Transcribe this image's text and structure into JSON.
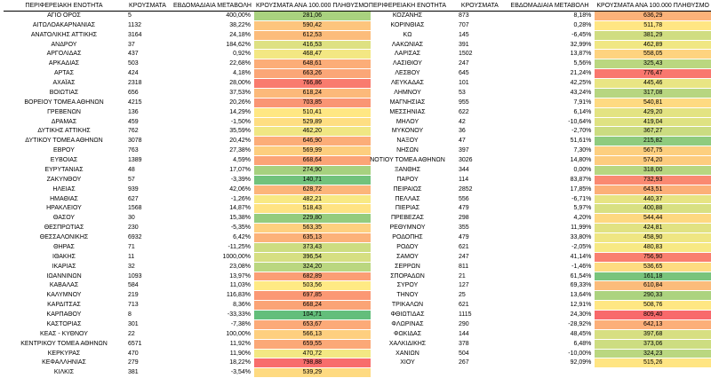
{
  "headers": {
    "region": "ΠΕΡΙΦΕΡΕΙΑΚΗ ΕΝΟΤΗΤΑ",
    "cases": "ΚΡΟΥΣΜΑΤΑ",
    "weekly_change": "ΕΒΔΟΜΑΔΙΑΙΑ ΜΕΤΑΒΟΛΗ",
    "rate": "ΚΡΟΥΣΜΑΤΑ ΑΝΑ 100.000 ΠΛΗΘΥΣΜΟ"
  },
  "color_scale": {
    "low": "#63be7b",
    "mid": "#ffeb84",
    "high": "#f8696b",
    "min": 104.71,
    "mid_value": 500,
    "max": 809.4
  },
  "left_rows": [
    {
      "region": "ΑΓΙΟ ΟΡΟΣ",
      "cases": "5",
      "change": "400,00%",
      "rate": "281,06"
    },
    {
      "region": "ΑΙΤΩΛΟΑΚΑΡΝΑΝΙΑΣ",
      "cases": "1132",
      "change": "38,22%",
      "rate": "590,42"
    },
    {
      "region": "ΑΝΑΤΟΛΙΚΗΣ ΑΤΤΙΚΗΣ",
      "cases": "3164",
      "change": "24,18%",
      "rate": "612,53"
    },
    {
      "region": "ΑΝΔΡΟΥ",
      "cases": "37",
      "change": "184,62%",
      "rate": "416,53"
    },
    {
      "region": "ΑΡΓΟΛΙΔΑΣ",
      "cases": "437",
      "change": "0,92%",
      "rate": "468,47"
    },
    {
      "region": "ΑΡΚΑΔΙΑΣ",
      "cases": "503",
      "change": "22,68%",
      "rate": "648,61"
    },
    {
      "region": "ΑΡΤΑΣ",
      "cases": "424",
      "change": "4,18%",
      "rate": "663,26"
    },
    {
      "region": "ΑΧΑΪΑΣ",
      "cases": "2318",
      "change": "28,00%",
      "rate": "766,86"
    },
    {
      "region": "ΒΟΙΩΤΙΑΣ",
      "cases": "656",
      "change": "37,53%",
      "rate": "618,24"
    },
    {
      "region": "ΒΟΡΕΙΟΥ ΤΟΜΕΑ ΑΘΗΝΩΝ",
      "cases": "4215",
      "change": "20,26%",
      "rate": "703,85"
    },
    {
      "region": "ΓΡΕΒΕΝΩΝ",
      "cases": "136",
      "change": "14,29%",
      "rate": "510,41"
    },
    {
      "region": "ΔΡΑΜΑΣ",
      "cases": "459",
      "change": "-1,50%",
      "rate": "529,89"
    },
    {
      "region": "ΔΥΤΙΚΗΣ ΑΤΤΙΚΗΣ",
      "cases": "762",
      "change": "35,59%",
      "rate": "462,20"
    },
    {
      "region": "ΔΥΤΙΚΟΥ ΤΟΜΕΑ ΑΘΗΝΩΝ",
      "cases": "3078",
      "change": "20,42%",
      "rate": "646,90"
    },
    {
      "region": "ΕΒΡΟΥ",
      "cases": "763",
      "change": "27,38%",
      "rate": "569,99"
    },
    {
      "region": "ΕΥΒΟΙΑΣ",
      "cases": "1389",
      "change": "4,59%",
      "rate": "668,64"
    },
    {
      "region": "ΕΥΡΥΤΑΝΙΑΣ",
      "cases": "48",
      "change": "17,07%",
      "rate": "274,90"
    },
    {
      "region": "ΖΑΚΥΝΘΟΥ",
      "cases": "57",
      "change": "-3,39%",
      "rate": "140,71"
    },
    {
      "region": "ΗΛΕΙΑΣ",
      "cases": "939",
      "change": "42,06%",
      "rate": "628,72"
    },
    {
      "region": "ΗΜΑΘΙΑΣ",
      "cases": "627",
      "change": "-1,26%",
      "rate": "482,21"
    },
    {
      "region": "ΗΡΑΚΛΕΙΟΥ",
      "cases": "1568",
      "change": "14,87%",
      "rate": "518,43"
    },
    {
      "region": "ΘΑΣΟΥ",
      "cases": "30",
      "change": "15,38%",
      "rate": "229,80"
    },
    {
      "region": "ΘΕΣΠΡΩΤΙΑΣ",
      "cases": "230",
      "change": "-5,35%",
      "rate": "563,35"
    },
    {
      "region": "ΘΕΣΣΑΛΟΝΙΚΗΣ",
      "cases": "6932",
      "change": "6,42%",
      "rate": "635,13"
    },
    {
      "region": "ΘΗΡΑΣ",
      "cases": "71",
      "change": "-11,25%",
      "rate": "373,43"
    },
    {
      "region": "ΙΘΑΚΗΣ",
      "cases": "11",
      "change": "1000,00%",
      "rate": "396,54"
    },
    {
      "region": "ΙΚΑΡΙΑΣ",
      "cases": "32",
      "change": "23,08%",
      "rate": "324,20"
    },
    {
      "region": "ΙΩΑΝΝΙΝΩΝ",
      "cases": "1093",
      "change": "13,97%",
      "rate": "682,89"
    },
    {
      "region": "ΚΑΒΑΛΑΣ",
      "cases": "584",
      "change": "11,03%",
      "rate": "503,56"
    },
    {
      "region": "ΚΑΛΥΜΝΟΥ",
      "cases": "219",
      "change": "116,83%",
      "rate": "697,85"
    },
    {
      "region": "ΚΑΡΔΙΤΣΑΣ",
      "cases": "713",
      "change": "8,36%",
      "rate": "668,24"
    },
    {
      "region": "ΚΑΡΠΑΘΟΥ",
      "cases": "8",
      "change": "-33,33%",
      "rate": "104,71"
    },
    {
      "region": "ΚΑΣΤΟΡΙΑΣ",
      "cases": "301",
      "change": "-7,38%",
      "rate": "653,67"
    },
    {
      "region": "ΚΕΑΣ - ΚΥΘΝΟΥ",
      "cases": "22",
      "change": "100,00%",
      "rate": "566,13"
    },
    {
      "region": "ΚΕΝΤΡΙΚΟΥ ΤΟΜΕΑ ΑΘΗΝΩΝ",
      "cases": "6571",
      "change": "11,92%",
      "rate": "659,55"
    },
    {
      "region": "ΚΕΡΚΥΡΑΣ",
      "cases": "470",
      "change": "11,90%",
      "rate": "470,72"
    },
    {
      "region": "ΚΕΦΑΛΛΗΝΙΑΣ",
      "cases": "279",
      "change": "18,22%",
      "rate": "798,88"
    },
    {
      "region": "ΚΙΛΚΙΣ",
      "cases": "381",
      "change": "-3,54%",
      "rate": "539,29"
    }
  ],
  "right_rows": [
    {
      "region": "ΚΟΖΑΝΗΣ",
      "cases": "873",
      "change": "8,18%",
      "rate": "636,29"
    },
    {
      "region": "ΚΟΡΙΝΘΙΑΣ",
      "cases": "707",
      "change": "0,28%",
      "rate": "511,78"
    },
    {
      "region": "ΚΩ",
      "cases": "145",
      "change": "-6,45%",
      "rate": "381,29"
    },
    {
      "region": "ΛΑΚΩΝΙΑΣ",
      "cases": "391",
      "change": "32,99%",
      "rate": "462,89"
    },
    {
      "region": "ΛΑΡΙΣΑΣ",
      "cases": "1502",
      "change": "13,87%",
      "rate": "558,05"
    },
    {
      "region": "ΛΑΣΙΘΙΟΥ",
      "cases": "247",
      "change": "5,56%",
      "rate": "325,43"
    },
    {
      "region": "ΛΕΣΒΟΥ",
      "cases": "645",
      "change": "21,24%",
      "rate": "776,47"
    },
    {
      "region": "ΛΕΥΚΑΔΑΣ",
      "cases": "101",
      "change": "42,25%",
      "rate": "445,46"
    },
    {
      "region": "ΛΗΜΝΟΥ",
      "cases": "53",
      "change": "43,24%",
      "rate": "317,08"
    },
    {
      "region": "ΜΑΓΝΗΣΙΑΣ",
      "cases": "955",
      "change": "7,91%",
      "rate": "540,81"
    },
    {
      "region": "ΜΕΣΣΗΝΙΑΣ",
      "cases": "622",
      "change": "6,14%",
      "rate": "429,20"
    },
    {
      "region": "ΜΗΛΟΥ",
      "cases": "42",
      "change": "-10,64%",
      "rate": "419,04"
    },
    {
      "region": "ΜΥΚΟΝΟΥ",
      "cases": "36",
      "change": "-2,70%",
      "rate": "367,27"
    },
    {
      "region": "ΝΑΞΟΥ",
      "cases": "47",
      "change": "51,61%",
      "rate": "215,82"
    },
    {
      "region": "ΝΗΣΩΝ",
      "cases": "397",
      "change": "7,30%",
      "rate": "567,75"
    },
    {
      "region": "ΝΟΤΙΟΥ ΤΟΜΕΑ ΑΘΗΝΩΝ",
      "cases": "3026",
      "change": "14,80%",
      "rate": "574,20"
    },
    {
      "region": "ΞΑΝΘΗΣ",
      "cases": "344",
      "change": "0,00%",
      "rate": "318,00"
    },
    {
      "region": "ΠΑΡΟΥ",
      "cases": "114",
      "change": "83,87%",
      "rate": "732,93"
    },
    {
      "region": "ΠΕΙΡΑΙΩΣ",
      "cases": "2852",
      "change": "17,85%",
      "rate": "643,51"
    },
    {
      "region": "ΠΕΛΛΑΣ",
      "cases": "556",
      "change": "-6,71%",
      "rate": "440,37"
    },
    {
      "region": "ΠΙΕΡΙΑΣ",
      "cases": "479",
      "change": "5,97%",
      "rate": "400,88"
    },
    {
      "region": "ΠΡΕΒΕΖΑΣ",
      "cases": "298",
      "change": "4,20%",
      "rate": "544,44"
    },
    {
      "region": "ΡΕΘΥΜΝΟΥ",
      "cases": "355",
      "change": "11,99%",
      "rate": "424,81"
    },
    {
      "region": "ΡΟΔΟΠΗΣ",
      "cases": "479",
      "change": "33,80%",
      "rate": "458,90"
    },
    {
      "region": "ΡΟΔΟΥ",
      "cases": "621",
      "change": "-2,05%",
      "rate": "480,83"
    },
    {
      "region": "ΣΑΜΟΥ",
      "cases": "247",
      "change": "41,14%",
      "rate": "756,90"
    },
    {
      "region": "ΣΕΡΡΩΝ",
      "cases": "811",
      "change": "-1,46%",
      "rate": "536,65"
    },
    {
      "region": "ΣΠΟΡΑΔΩΝ",
      "cases": "21",
      "change": "61,54%",
      "rate": "161,18"
    },
    {
      "region": "ΣΥΡΟΥ",
      "cases": "127",
      "change": "69,33%",
      "rate": "610,84"
    },
    {
      "region": "ΤΗΝΟΥ",
      "cases": "25",
      "change": "13,64%",
      "rate": "290,33"
    },
    {
      "region": "ΤΡΙΚΑΛΩΝ",
      "cases": "621",
      "change": "12,91%",
      "rate": "508,76"
    },
    {
      "region": "ΦΘΙΩΤΙΔΑΣ",
      "cases": "1115",
      "change": "24,30%",
      "rate": "809,40"
    },
    {
      "region": "ΦΛΩΡΙΝΑΣ",
      "cases": "290",
      "change": "-28,92%",
      "rate": "642,13"
    },
    {
      "region": "ΦΩΚΙΔΑΣ",
      "cases": "144",
      "change": "48,45%",
      "rate": "397,68"
    },
    {
      "region": "ΧΑΛΚΙΔΙΚΗΣ",
      "cases": "378",
      "change": "6,48%",
      "rate": "373,06"
    },
    {
      "region": "ΧΑΝΙΩΝ",
      "cases": "504",
      "change": "-10,00%",
      "rate": "324,23"
    },
    {
      "region": "ΧΙΟΥ",
      "cases": "267",
      "change": "92,09%",
      "rate": "515,26"
    }
  ]
}
